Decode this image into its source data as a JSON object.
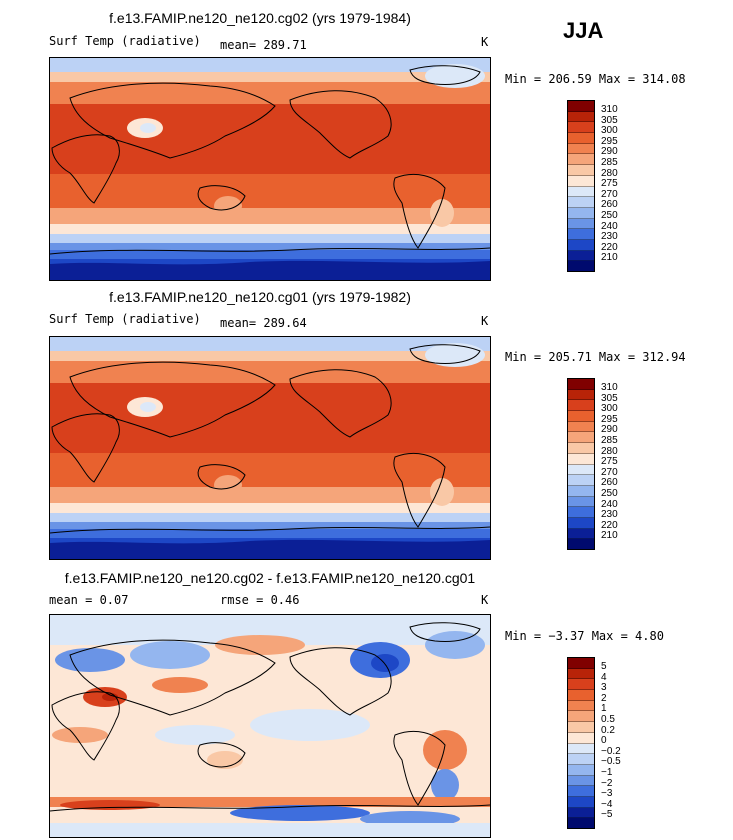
{
  "season": "JJA",
  "panels": [
    {
      "title": "f.e13.FAMIP.ne120_ne120.cg02 (yrs 1979-1984)",
      "left_label": "Surf Temp (radiative)",
      "center_label": "mean= 289.71",
      "units": "K",
      "minmax": "Min = 206.59 Max = 314.08",
      "colorbar_labels": [
        "310",
        "305",
        "300",
        "295",
        "290",
        "285",
        "280",
        "275",
        "270",
        "260",
        "250",
        "240",
        "230",
        "220",
        "210"
      ]
    },
    {
      "title": "f.e13.FAMIP.ne120_ne120.cg01 (yrs 1979-1982)",
      "left_label": "Surf Temp (radiative)",
      "center_label": "mean= 289.64",
      "units": "K",
      "minmax": "Min = 205.71 Max = 312.94",
      "colorbar_labels": [
        "310",
        "305",
        "300",
        "295",
        "290",
        "285",
        "280",
        "275",
        "270",
        "260",
        "250",
        "240",
        "230",
        "220",
        "210"
      ]
    },
    {
      "title": "f.e13.FAMIP.ne120_ne120.cg02 - f.e13.FAMIP.ne120_ne120.cg01",
      "left_label": "mean =    0.07",
      "center_label": "rmse =    0.46",
      "units": "K",
      "minmax": "Min =  −3.37 Max =   4.80",
      "colorbar_labels": [
        "5",
        "4",
        "3",
        "2",
        "1",
        "0.5",
        "0.2",
        "0",
        "−0.2",
        "−0.5",
        "−1",
        "−2",
        "−3",
        "−4",
        "−5"
      ]
    }
  ],
  "palettes": {
    "temperature": [
      "#800000",
      "#b82308",
      "#d8401c",
      "#e8612e",
      "#f08250",
      "#f5a57a",
      "#f9c8a6",
      "#fde7d6",
      "#dce8f8",
      "#bcd2f5",
      "#94b6ef",
      "#6a94e6",
      "#3e6edd",
      "#1d47c6",
      "#0b1f96",
      "#000a6e"
    ],
    "difference": [
      "#800000",
      "#b82308",
      "#d8401c",
      "#e8612e",
      "#f08250",
      "#f5a57a",
      "#f9c8a6",
      "#fde7d6",
      "#dce8f8",
      "#bcd2f5",
      "#94b6ef",
      "#6a94e6",
      "#3e6edd",
      "#1d47c6",
      "#0b1f96",
      "#000a6e"
    ]
  }
}
